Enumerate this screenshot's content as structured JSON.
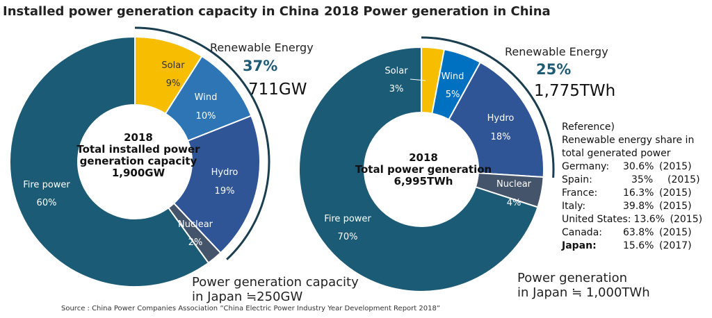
{
  "titles": {
    "left": "Installed power generation capacity in China",
    "right": "2018 Power generation in China"
  },
  "chart_data": [
    {
      "type": "pie",
      "title": "Installed power generation capacity in China",
      "center_text": [
        "2018",
        "Total installed power",
        "generation capacity",
        "1,900GW"
      ],
      "slices": [
        {
          "label": "Solar",
          "value": 9,
          "value_label": "9%",
          "color": "#f7bd00"
        },
        {
          "label": "Wind",
          "value": 10,
          "value_label": "10%",
          "color": "#2e75b6"
        },
        {
          "label": "Hydro",
          "value": 19,
          "value_label": "19%",
          "color": "#2f5597"
        },
        {
          "label": "Nuclear",
          "value": 2,
          "value_label": "2%",
          "color": "#44546a"
        },
        {
          "label": "Fire power",
          "value": 60,
          "value_label": "60%",
          "color": "#1b5b76"
        }
      ],
      "renewable": {
        "label": "Renewable Energy",
        "percent": "37%",
        "amount": "711GW"
      },
      "japan_note": [
        "Power generation capacity",
        "in Japan ≒250GW"
      ]
    },
    {
      "type": "pie",
      "title": "2018 Power generation in China",
      "center_text": [
        "2018",
        "Total power generation",
        "6,995TWh"
      ],
      "slices": [
        {
          "label": "Solar",
          "value": 3,
          "value_label": "3%",
          "color": "#f7bd00"
        },
        {
          "label": "Wind",
          "value": 5,
          "value_label": "5%",
          "color": "#0070c0"
        },
        {
          "label": "Hydro",
          "value": 18,
          "value_label": "18%",
          "color": "#2f5597"
        },
        {
          "label": "Nuclear",
          "value": 4,
          "value_label": "4%",
          "color": "#44546a"
        },
        {
          "label": "Fire power",
          "value": 70,
          "value_label": "70%",
          "color": "#1b5b76"
        }
      ],
      "renewable": {
        "label": "Renewable Energy",
        "percent": "25%",
        "amount": "1,775TWh"
      },
      "japan_note": [
        "Power generation",
        "in Japan ≒ 1,000TWh"
      ]
    }
  ],
  "reference": {
    "heading": "Reference)",
    "intro": [
      "Renewable energy share in",
      "total generated power"
    ],
    "rows": [
      {
        "country": "Germany:",
        "share": "30.6%",
        "year": "(2015)"
      },
      {
        "country": "Spain:",
        "share": "35%",
        "year": "(2015)"
      },
      {
        "country": "France:",
        "share": "16.3%",
        "year": "(2015)"
      },
      {
        "country": "Italy:",
        "share": "39.8%",
        "year": "(2015)"
      },
      {
        "country": "United States:",
        "share": "13.6%",
        "year": "(2015)"
      },
      {
        "country": "Canada:",
        "share": "63.8%",
        "year": "(2015)"
      },
      {
        "country": "Japan:",
        "share": "15.6%",
        "year": "(2017)",
        "bold": true
      }
    ]
  },
  "source": "Source : China Power Companies Association ”China Electric Power Industry Year Development Report 2018”"
}
